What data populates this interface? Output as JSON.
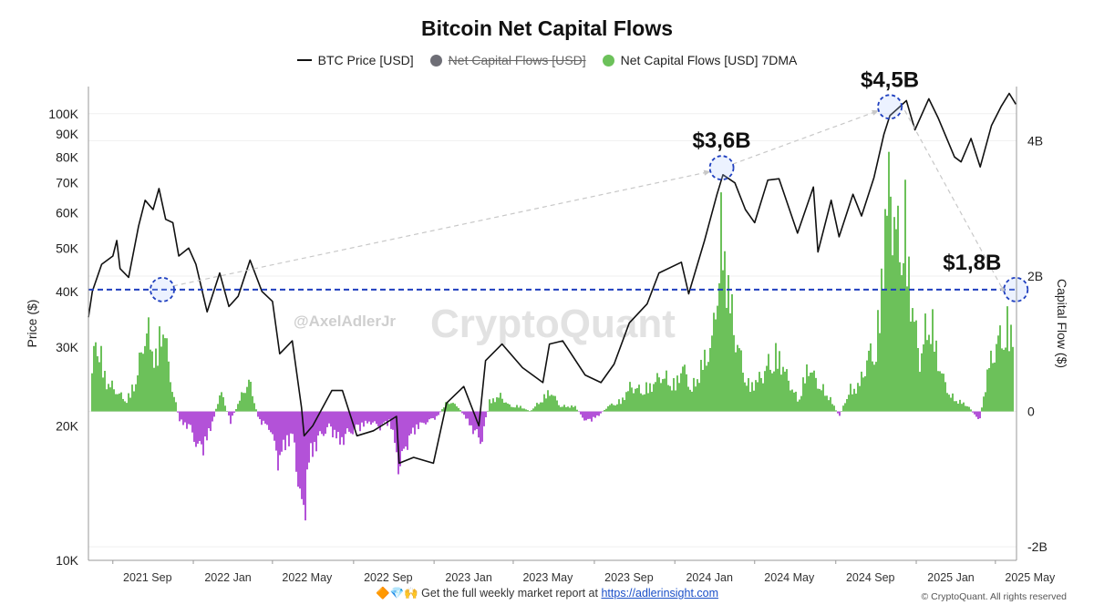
{
  "chart_data": {
    "type": "line",
    "title": "Bitcoin Net Capital Flows",
    "legend": [
      {
        "label": "BTC Price [USD]",
        "color": "#111111",
        "kind": "line"
      },
      {
        "label": "Net Capital Flows [USD]",
        "color": "#6e6e76",
        "kind": "dot",
        "hidden": true
      },
      {
        "label": "Net Capital Flows [USD] 7DMA",
        "color": "#6cc15a",
        "kind": "dot"
      }
    ],
    "ylabel_left": "Price ($)",
    "ylabel_right": "Capital Flow ($)",
    "y_left_scale": "log",
    "y_left_ticks": [
      "10K",
      "20K",
      "30K",
      "40K",
      "50K",
      "60K",
      "70K",
      "80K",
      "90K",
      "100K"
    ],
    "y_left_tick_values": [
      10000,
      20000,
      30000,
      40000,
      50000,
      60000,
      70000,
      80000,
      90000,
      100000
    ],
    "y_left_range": [
      10000,
      115000
    ],
    "y_right_ticks": [
      "4B",
      "2B",
      "0",
      "-2B"
    ],
    "y_right_tick_values": [
      4,
      2,
      0,
      -2
    ],
    "y_right_range": [
      -2.2,
      4.8
    ],
    "x_ticks": [
      "2021 Sep",
      "2022 Jan",
      "2022 May",
      "2022 Sep",
      "2023 Jan",
      "2023 May",
      "2023 Sep",
      "2024 Jan",
      "2024 May",
      "2024 Sep",
      "2025 Jan",
      "2025 May"
    ],
    "x_tick_dates": [
      "2021-09-01",
      "2022-01-01",
      "2022-05-01",
      "2022-09-01",
      "2023-01-01",
      "2023-05-01",
      "2023-09-01",
      "2024-01-01",
      "2024-05-01",
      "2024-09-01",
      "2025-01-01",
      "2025-05-01"
    ],
    "x_range": [
      "2021-07-26",
      "2025-06-02"
    ],
    "grid": true,
    "threshold_line": {
      "value": 1.8,
      "axis": "right",
      "color": "#1f3fbf",
      "style": "dashed"
    },
    "series": [
      {
        "name": "BTC Price [USD]",
        "axis": "left",
        "color": "#111111",
        "points": [
          [
            "2021-07-26",
            35000
          ],
          [
            "2021-08-01",
            40000
          ],
          [
            "2021-08-15",
            46000
          ],
          [
            "2021-09-01",
            48000
          ],
          [
            "2021-09-07",
            52000
          ],
          [
            "2021-09-12",
            45000
          ],
          [
            "2021-09-25",
            43000
          ],
          [
            "2021-10-10",
            56000
          ],
          [
            "2021-10-20",
            64000
          ],
          [
            "2021-11-01",
            61000
          ],
          [
            "2021-11-10",
            68000
          ],
          [
            "2021-11-20",
            58000
          ],
          [
            "2021-12-01",
            57000
          ],
          [
            "2021-12-10",
            48000
          ],
          [
            "2021-12-25",
            50000
          ],
          [
            "2022-01-05",
            46000
          ],
          [
            "2022-01-22",
            36000
          ],
          [
            "2022-02-10",
            44000
          ],
          [
            "2022-02-24",
            37000
          ],
          [
            "2022-03-10",
            39000
          ],
          [
            "2022-03-28",
            47000
          ],
          [
            "2022-04-15",
            40000
          ],
          [
            "2022-05-01",
            38000
          ],
          [
            "2022-05-12",
            29000
          ],
          [
            "2022-05-31",
            31000
          ],
          [
            "2022-06-14",
            22000
          ],
          [
            "2022-06-18",
            19000
          ],
          [
            "2022-07-01",
            20000
          ],
          [
            "2022-07-30",
            24000
          ],
          [
            "2022-08-15",
            24000
          ],
          [
            "2022-09-06",
            19000
          ],
          [
            "2022-10-01",
            19500
          ],
          [
            "2022-11-05",
            21000
          ],
          [
            "2022-11-09",
            16500
          ],
          [
            "2022-12-01",
            17000
          ],
          [
            "2022-12-31",
            16500
          ],
          [
            "2023-01-20",
            22500
          ],
          [
            "2023-02-15",
            24500
          ],
          [
            "2023-03-10",
            20000
          ],
          [
            "2023-03-20",
            28000
          ],
          [
            "2023-04-14",
            30500
          ],
          [
            "2023-05-15",
            27000
          ],
          [
            "2023-06-15",
            25000
          ],
          [
            "2023-06-25",
            30500
          ],
          [
            "2023-07-15",
            31000
          ],
          [
            "2023-08-18",
            26000
          ],
          [
            "2023-09-11",
            25000
          ],
          [
            "2023-10-01",
            27500
          ],
          [
            "2023-10-24",
            34000
          ],
          [
            "2023-11-20",
            37500
          ],
          [
            "2023-12-08",
            44000
          ],
          [
            "2024-01-11",
            46500
          ],
          [
            "2024-01-22",
            39500
          ],
          [
            "2024-02-15",
            52000
          ],
          [
            "2024-03-05",
            66000
          ],
          [
            "2024-03-14",
            73000
          ],
          [
            "2024-04-01",
            70000
          ],
          [
            "2024-04-17",
            61000
          ],
          [
            "2024-05-01",
            57000
          ],
          [
            "2024-05-21",
            71000
          ],
          [
            "2024-06-07",
            71500
          ],
          [
            "2024-07-05",
            54000
          ],
          [
            "2024-07-29",
            68500
          ],
          [
            "2024-08-05",
            49000
          ],
          [
            "2024-08-25",
            64000
          ],
          [
            "2024-09-06",
            53000
          ],
          [
            "2024-09-27",
            66000
          ],
          [
            "2024-10-10",
            59000
          ],
          [
            "2024-10-29",
            72000
          ],
          [
            "2024-11-13",
            90000
          ],
          [
            "2024-11-22",
            99000
          ],
          [
            "2024-12-05",
            103000
          ],
          [
            "2024-12-17",
            107000
          ],
          [
            "2024-12-30",
            92000
          ],
          [
            "2025-01-20",
            108000
          ],
          [
            "2025-02-03",
            98000
          ],
          [
            "2025-02-28",
            80000
          ],
          [
            "2025-03-10",
            78000
          ],
          [
            "2025-03-25",
            88000
          ],
          [
            "2025-04-08",
            76000
          ],
          [
            "2025-04-25",
            94000
          ],
          [
            "2025-05-10",
            104000
          ],
          [
            "2025-05-22",
            111000
          ],
          [
            "2025-06-01",
            105000
          ]
        ]
      },
      {
        "name": "Net Capital Flows [USD] 7DMA",
        "axis": "right",
        "color_positive": "#6cc15a",
        "color_negative": "#b352d8",
        "points": [
          [
            "2021-07-26",
            0.1
          ],
          [
            "2021-08-05",
            1.5
          ],
          [
            "2021-08-20",
            0.6
          ],
          [
            "2021-09-05",
            0.4
          ],
          [
            "2021-09-20",
            0.2
          ],
          [
            "2021-10-05",
            0.6
          ],
          [
            "2021-10-20",
            1.6
          ],
          [
            "2021-11-05",
            1.0
          ],
          [
            "2021-11-15",
            1.8
          ],
          [
            "2021-11-25",
            0.7
          ],
          [
            "2021-12-10",
            -0.2
          ],
          [
            "2021-12-25",
            -0.3
          ],
          [
            "2022-01-10",
            -0.8
          ],
          [
            "2022-01-25",
            -0.4
          ],
          [
            "2022-02-10",
            0.4
          ],
          [
            "2022-02-25",
            -0.2
          ],
          [
            "2022-03-10",
            0.2
          ],
          [
            "2022-03-25",
            0.6
          ],
          [
            "2022-04-10",
            -0.2
          ],
          [
            "2022-04-25",
            -0.3
          ],
          [
            "2022-05-10",
            -1.0
          ],
          [
            "2022-05-20",
            -0.6
          ],
          [
            "2022-06-01",
            -0.5
          ],
          [
            "2022-06-14",
            -2.2
          ],
          [
            "2022-06-25",
            -0.9
          ],
          [
            "2022-07-10",
            -0.5
          ],
          [
            "2022-07-25",
            -0.3
          ],
          [
            "2022-08-10",
            -0.6
          ],
          [
            "2022-08-25",
            -0.4
          ],
          [
            "2022-09-10",
            -0.3
          ],
          [
            "2022-09-25",
            -0.2
          ],
          [
            "2022-10-10",
            -0.3
          ],
          [
            "2022-10-25",
            -0.2
          ],
          [
            "2022-11-08",
            -1.1
          ],
          [
            "2022-11-20",
            -0.6
          ],
          [
            "2022-12-05",
            -0.3
          ],
          [
            "2022-12-20",
            -0.2
          ],
          [
            "2023-01-05",
            -0.1
          ],
          [
            "2023-01-20",
            0.2
          ],
          [
            "2023-02-05",
            0.1
          ],
          [
            "2023-02-20",
            -0.2
          ],
          [
            "2023-03-12",
            -0.6
          ],
          [
            "2023-03-25",
            0.2
          ],
          [
            "2023-04-10",
            0.3
          ],
          [
            "2023-04-25",
            0.1
          ],
          [
            "2023-05-10",
            0.1
          ],
          [
            "2023-05-25",
            0.0
          ],
          [
            "2023-06-10",
            0.2
          ],
          [
            "2023-06-25",
            0.4
          ],
          [
            "2023-07-10",
            0.1
          ],
          [
            "2023-08-01",
            0.1
          ],
          [
            "2023-08-18",
            -0.2
          ],
          [
            "2023-09-05",
            -0.1
          ],
          [
            "2023-09-20",
            0.1
          ],
          [
            "2023-10-10",
            0.2
          ],
          [
            "2023-10-25",
            0.5
          ],
          [
            "2023-11-10",
            0.4
          ],
          [
            "2023-11-25",
            0.5
          ],
          [
            "2023-12-10",
            0.7
          ],
          [
            "2024-01-01",
            0.5
          ],
          [
            "2024-01-11",
            0.9
          ],
          [
            "2024-01-25",
            0.4
          ],
          [
            "2024-02-10",
            0.9
          ],
          [
            "2024-02-25",
            1.3
          ],
          [
            "2024-03-05",
            2.6
          ],
          [
            "2024-03-12",
            3.6
          ],
          [
            "2024-03-22",
            2.2
          ],
          [
            "2024-04-05",
            1.2
          ],
          [
            "2024-04-20",
            0.5
          ],
          [
            "2024-05-05",
            0.6
          ],
          [
            "2024-05-20",
            0.9
          ],
          [
            "2024-06-05",
            1.1
          ],
          [
            "2024-06-20",
            0.6
          ],
          [
            "2024-07-05",
            0.2
          ],
          [
            "2024-07-20",
            0.9
          ],
          [
            "2024-08-05",
            0.5
          ],
          [
            "2024-08-20",
            0.3
          ],
          [
            "2024-09-05",
            -0.1
          ],
          [
            "2024-09-20",
            0.4
          ],
          [
            "2024-10-05",
            0.5
          ],
          [
            "2024-10-20",
            1.1
          ],
          [
            "2024-11-01",
            1.2
          ],
          [
            "2024-11-12",
            3.5
          ],
          [
            "2024-11-22",
            4.5
          ],
          [
            "2024-12-02",
            3.2
          ],
          [
            "2024-12-12",
            3.8
          ],
          [
            "2024-12-25",
            2.0
          ],
          [
            "2025-01-05",
            1.0
          ],
          [
            "2025-01-20",
            1.9
          ],
          [
            "2025-02-05",
            0.8
          ],
          [
            "2025-02-20",
            0.3
          ],
          [
            "2025-03-05",
            0.2
          ],
          [
            "2025-03-20",
            0.1
          ],
          [
            "2025-04-05",
            -0.2
          ],
          [
            "2025-04-20",
            0.9
          ],
          [
            "2025-05-05",
            1.4
          ],
          [
            "2025-05-20",
            1.6
          ],
          [
            "2025-06-01",
            1.8
          ]
        ]
      }
    ],
    "annotations": [
      {
        "label": "$3,6B",
        "date": "2024-03-12",
        "value": 3.6
      },
      {
        "label": "$4,5B",
        "date": "2024-11-22",
        "value": 4.5
      },
      {
        "label": "$1,8B",
        "date": "2025-06-01",
        "value": 1.8
      },
      {
        "label": "",
        "date": "2021-11-15",
        "value": 1.8
      }
    ],
    "watermark": {
      "handle": "@AxelAdlerJr",
      "brand": "CryptoQuant"
    }
  },
  "footer": {
    "emoji": "🔶💎🙌",
    "text": "Get the full weekly market report at",
    "link": "https://adlerinsight.com",
    "copyright": "© CryptoQuant. All rights reserved"
  },
  "colors": {
    "grid": "#efefef",
    "axis": "#999999",
    "dashed": "#1f3fbf",
    "arrow": "#c8c8c8"
  }
}
